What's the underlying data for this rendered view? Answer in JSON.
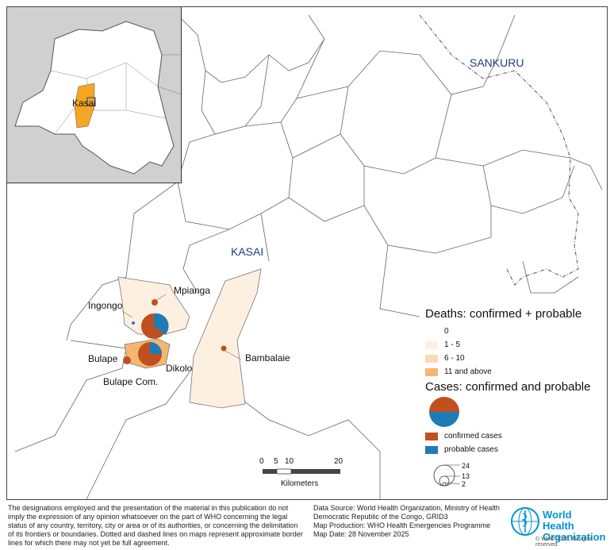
{
  "map": {
    "region_labels": {
      "sankuru": "SANKURU",
      "kasai": "KASAI"
    },
    "health_zones": [
      "Mpianga",
      "Ingongo",
      "Bulape",
      "Dikolo",
      "Bulape Com.",
      "Bambalaie"
    ],
    "inset": {
      "label": "Kasai"
    }
  },
  "legend": {
    "deaths_title": "Deaths: confirmed + probable",
    "deaths_classes": [
      {
        "label": "0",
        "color": "#ffffff"
      },
      {
        "label": "1 - 5",
        "color": "#fdf0e0"
      },
      {
        "label": "6 - 10",
        "color": "#f9dab5"
      },
      {
        "label": "11 and above",
        "color": "#f5b770"
      }
    ],
    "cases_title": "Cases: confirmed and probable",
    "case_types": [
      {
        "label": "confirmed cases",
        "color": "#c0501f"
      },
      {
        "label": "probable cases",
        "color": "#1f7bb5"
      }
    ],
    "size_values": [
      "24",
      "13",
      "2"
    ]
  },
  "scalebar": {
    "ticks": [
      "0",
      "5",
      "10",
      "20"
    ],
    "unit": "Kilometers"
  },
  "footer": {
    "disclaimer_lines": [
      "The designations employed and the presentation of the material in this publication do not",
      "imply the expression of any opinion whatsoever on the part of WHO concerning the legal",
      "status of any country, territory, city or area or of its authorities, or concerning the delimitation",
      "of its frontiers or boundaries. Dotted and dashed lines on maps represent approximate border",
      "lines for which there may not yet be full agreement."
    ],
    "source_lines": [
      "Data Source: World Health Organization, Ministry of Health",
      "Democratic Republic of the Congo, GRID3",
      "Map Production: WHO Health Emergencies Programme",
      "Map Date:  28 November 2025"
    ],
    "who_name_line1": "World Health",
    "who_name_line2": "Organization",
    "copyright": "© WHO 2025,  All rights reserved."
  }
}
